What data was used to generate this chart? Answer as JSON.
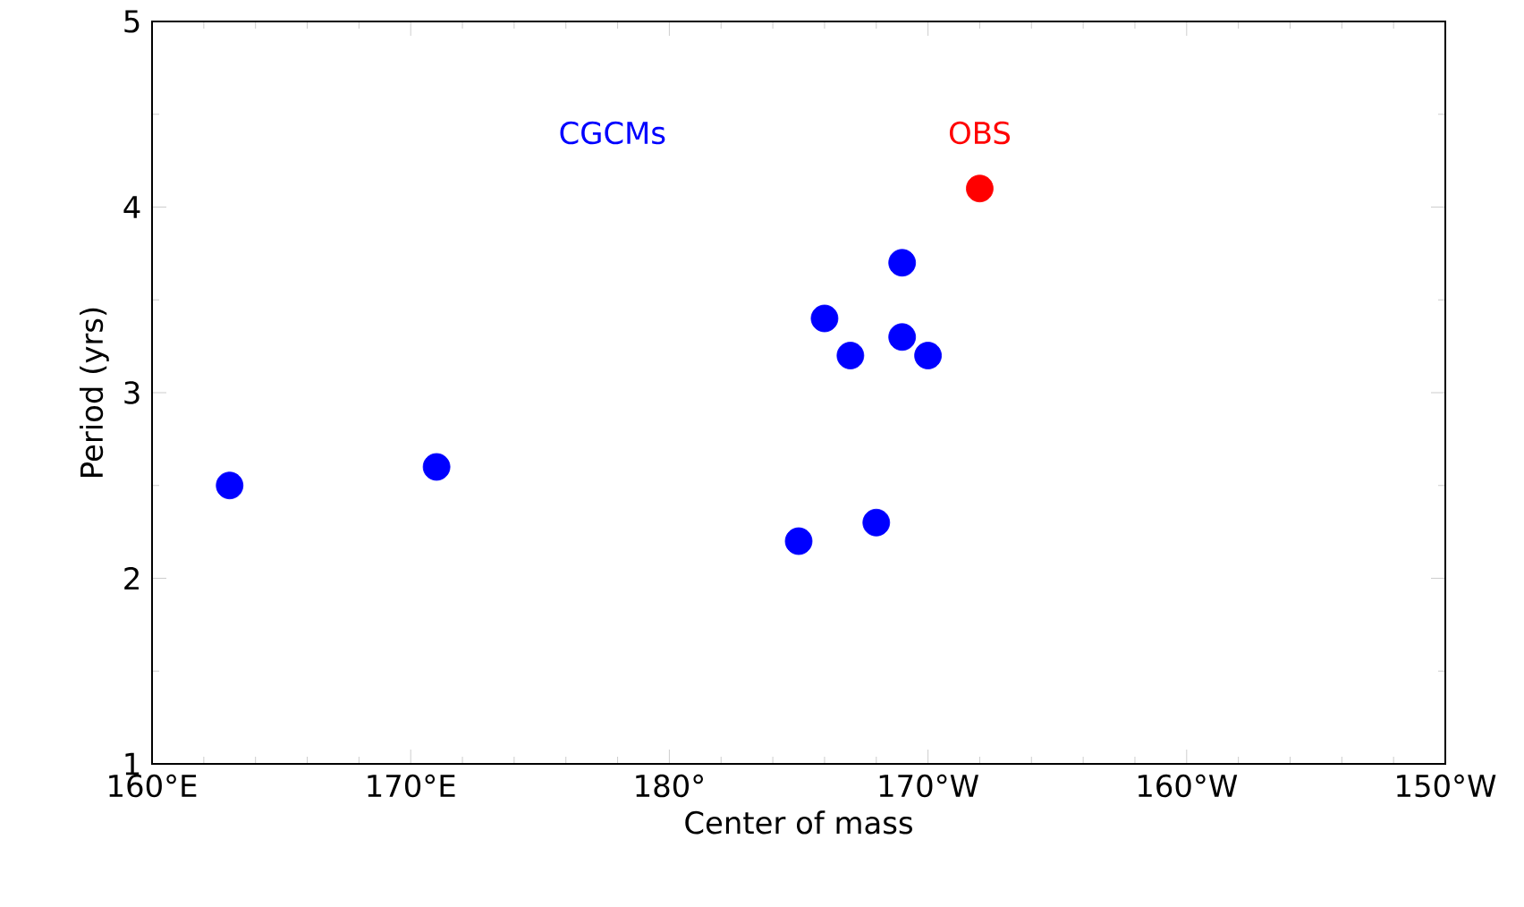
{
  "chart_data": {
    "type": "scatter",
    "xlabel": "Center of mass",
    "ylabel": "Period (yrs)",
    "marker": "circle",
    "grid": false,
    "xlim": [
      160,
      210
    ],
    "xticks": [
      {
        "value": 160,
        "label": "160°E"
      },
      {
        "value": 170,
        "label": "170°E"
      },
      {
        "value": 180,
        "label": "180°"
      },
      {
        "value": 190,
        "label": "170°W"
      },
      {
        "value": 200,
        "label": "160°W"
      },
      {
        "value": 210,
        "label": "150°W"
      }
    ],
    "ylim": [
      1,
      5
    ],
    "yticks": [
      1,
      2,
      3,
      4,
      5
    ],
    "series": [
      {
        "name": "CGCMs",
        "color": "#0000ff",
        "x": [
          163,
          171,
          185,
          186,
          187,
          188,
          189,
          189,
          190
        ],
        "values": [
          2.5,
          2.6,
          2.2,
          3.4,
          3.2,
          2.3,
          3.7,
          3.3,
          3.2
        ]
      },
      {
        "name": "OBS",
        "color": "#ff0000",
        "x": [
          192
        ],
        "values": [
          4.1
        ]
      }
    ]
  }
}
